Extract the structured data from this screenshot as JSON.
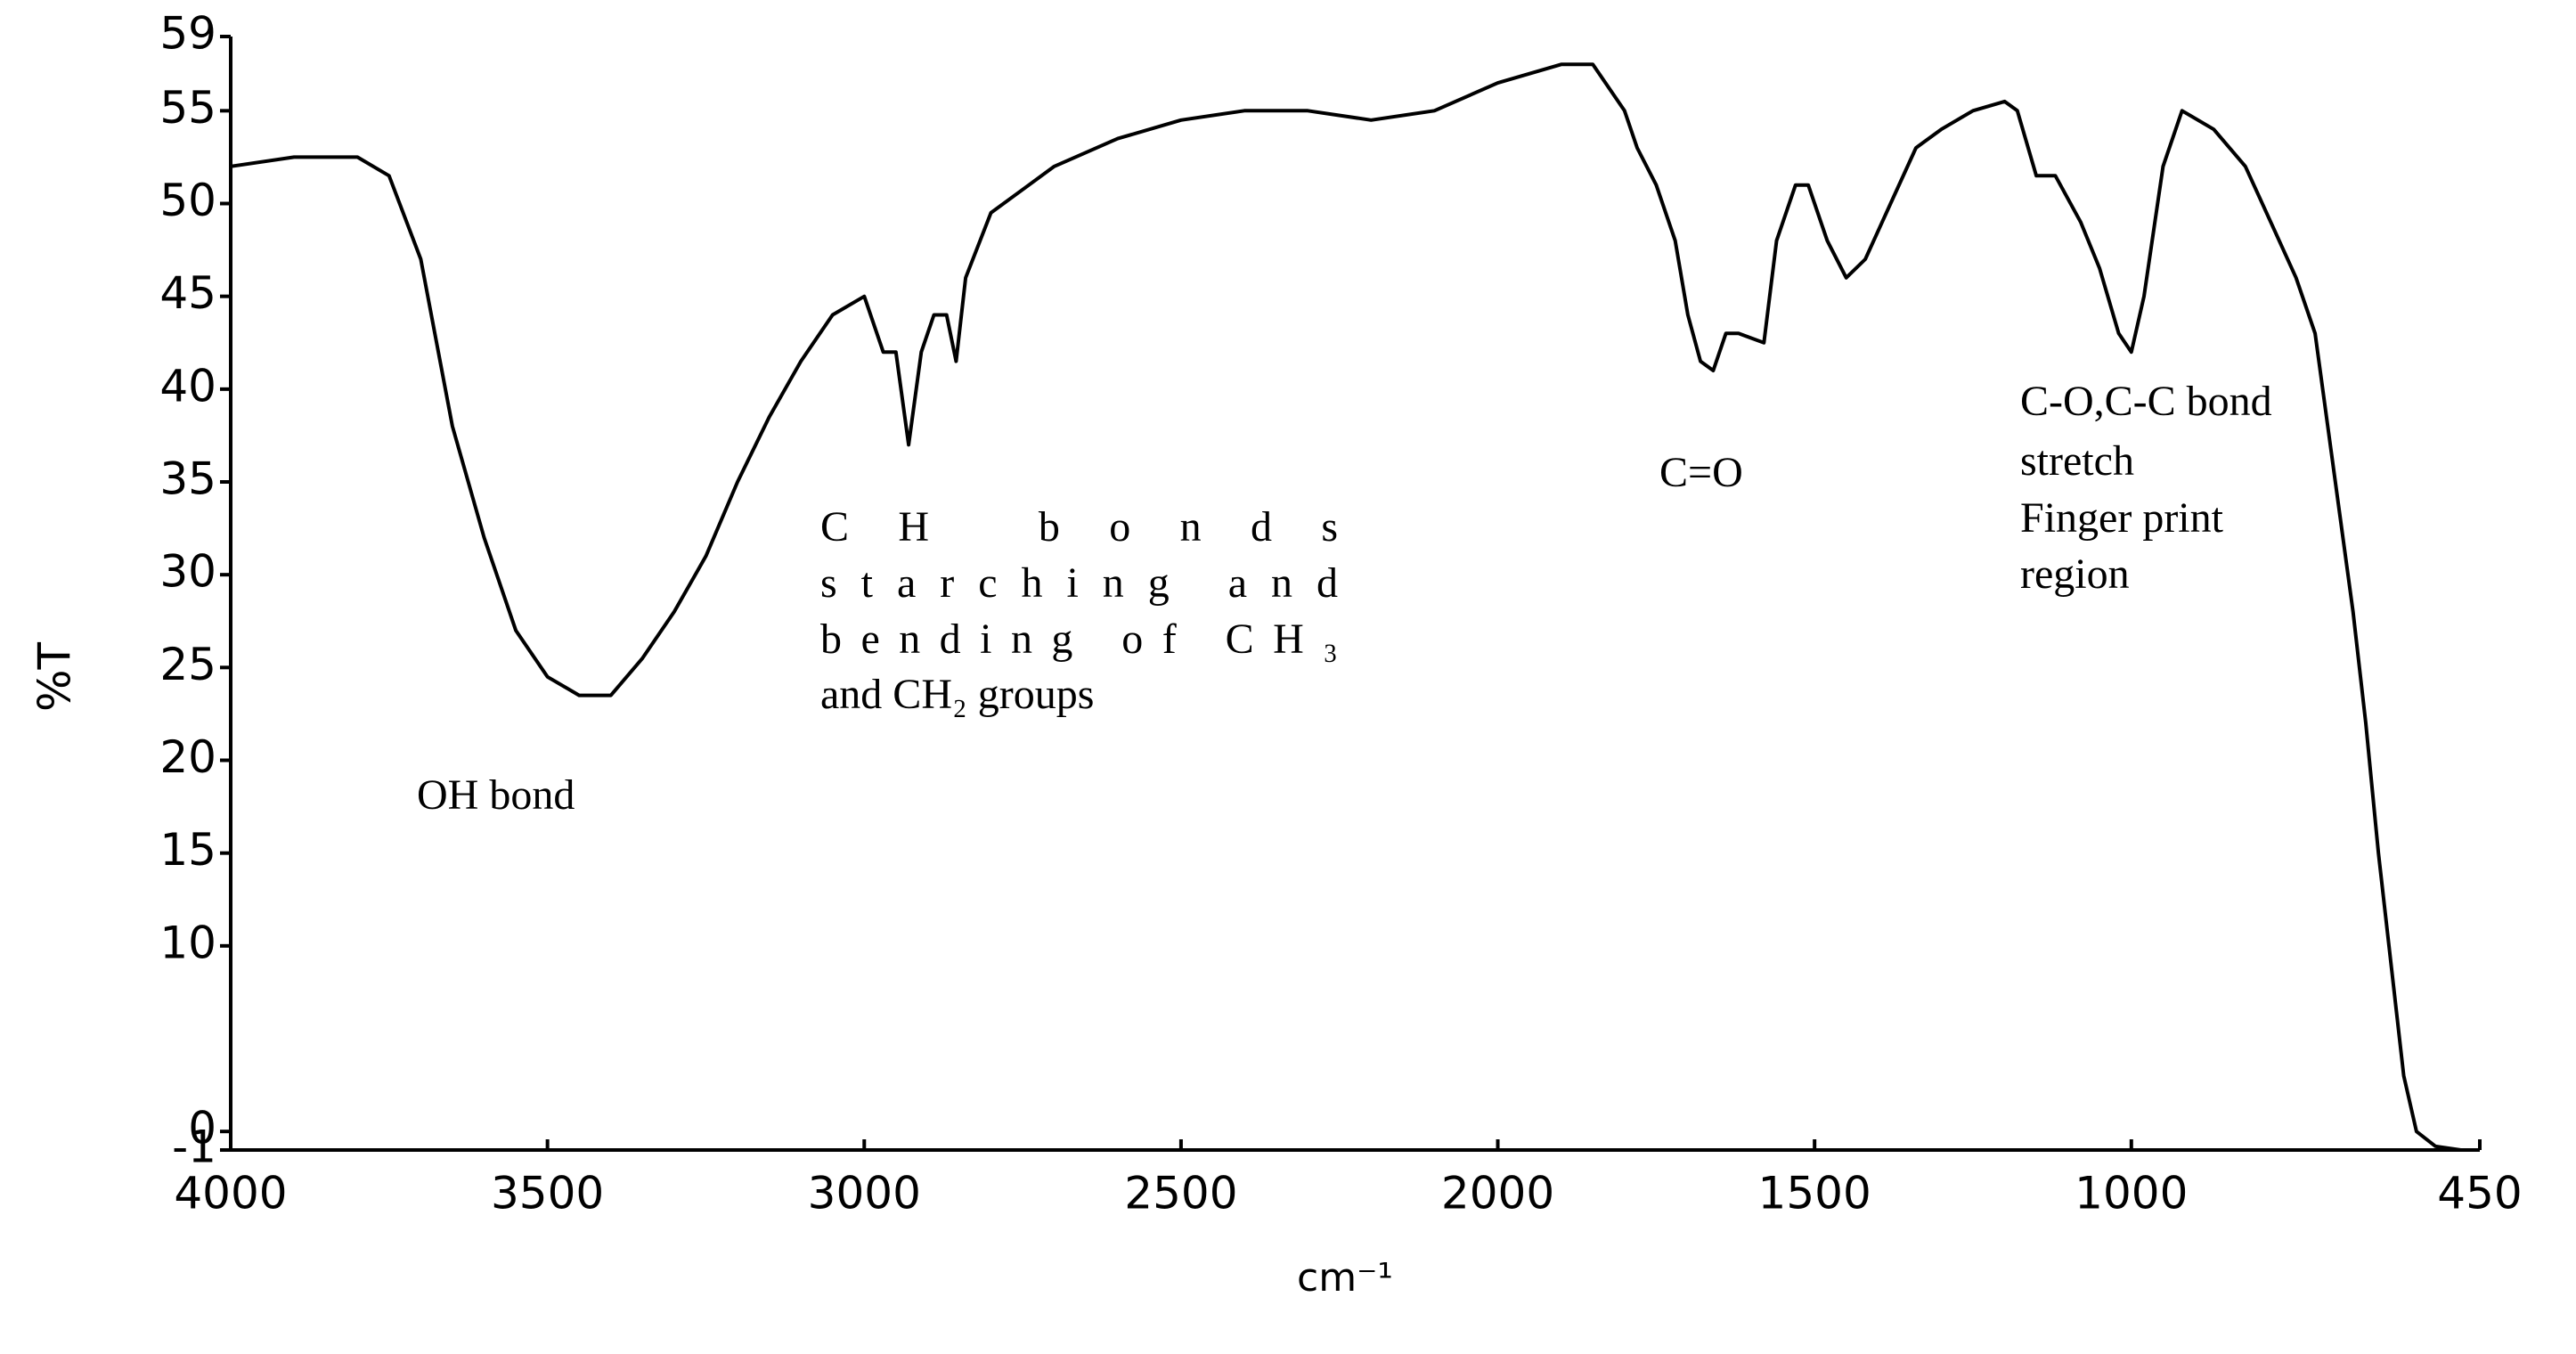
{
  "chart_data": {
    "type": "line",
    "xlabel": "cm⁻¹",
    "ylabel": "%T",
    "xlim": [
      4000,
      450
    ],
    "ylim": [
      -1,
      59
    ],
    "xticks": [
      4000,
      3500,
      3000,
      2500,
      2000,
      1500,
      1000,
      450
    ],
    "yticks": [
      -1,
      0,
      10,
      15,
      20,
      25,
      30,
      35,
      40,
      45,
      50,
      55,
      59
    ],
    "series": [
      {
        "color": "#000000",
        "x": [
          4000,
          3900,
          3800,
          3750,
          3700,
          3650,
          3600,
          3550,
          3500,
          3450,
          3400,
          3350,
          3300,
          3250,
          3200,
          3150,
          3100,
          3050,
          3000,
          2970,
          2950,
          2930,
          2910,
          2890,
          2870,
          2855,
          2840,
          2800,
          2700,
          2600,
          2500,
          2400,
          2300,
          2200,
          2100,
          2000,
          1900,
          1850,
          1800,
          1780,
          1750,
          1720,
          1700,
          1680,
          1660,
          1640,
          1620,
          1580,
          1560,
          1530,
          1510,
          1480,
          1450,
          1420,
          1380,
          1340,
          1300,
          1250,
          1200,
          1180,
          1150,
          1120,
          1080,
          1050,
          1020,
          1000,
          980,
          950,
          920,
          870,
          820,
          780,
          740,
          710,
          690,
          670,
          650,
          630,
          610,
          590,
          570,
          550,
          520,
          480
        ],
        "values": [
          52,
          52.5,
          52.5,
          51.5,
          47,
          38,
          32,
          27,
          24.5,
          23.5,
          23.5,
          25.5,
          28,
          31,
          35,
          38.5,
          41.5,
          44,
          45,
          42,
          42,
          37,
          42,
          44,
          44,
          41.5,
          46,
          49.5,
          52,
          53.5,
          54.5,
          55,
          55,
          54.5,
          55,
          56.5,
          57.5,
          57.5,
          55,
          53,
          51,
          48,
          44,
          41.5,
          41,
          43,
          43,
          42.5,
          48,
          51,
          51,
          48,
          46,
          47,
          50,
          53,
          54,
          55,
          55.5,
          55,
          51.5,
          51.5,
          49,
          46.5,
          43,
          42,
          45,
          52,
          55,
          54,
          52,
          49,
          46,
          43,
          38,
          33,
          28,
          22,
          15,
          9,
          3,
          0,
          -0.8,
          -1
        ]
      }
    ],
    "annotations": [
      {
        "lines": [
          "OH bond"
        ]
      },
      {
        "lines": [
          "CH bonds",
          "starching and",
          "bending of CH₃",
          "and CH₂ groups"
        ]
      },
      {
        "lines": [
          "C=O"
        ]
      },
      {
        "lines": [
          "C-O,C-C bond",
          "stretch",
          "Finger print",
          "region"
        ]
      }
    ]
  }
}
